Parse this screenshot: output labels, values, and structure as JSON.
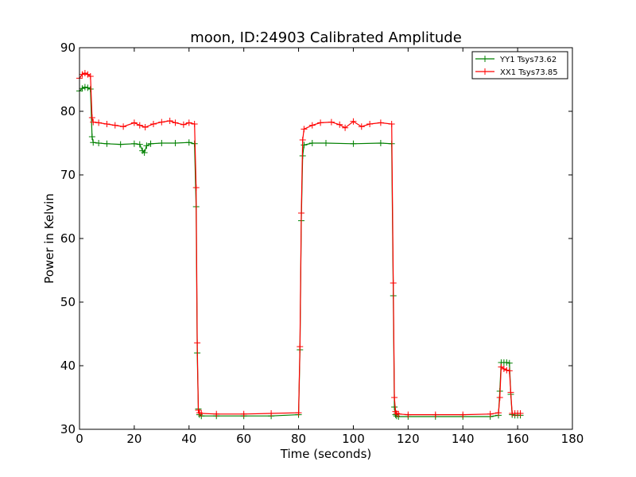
{
  "chart_data": {
    "type": "line",
    "title": "moon, ID:24903 Calibrated Amplitude",
    "xlabel": "Time (seconds)",
    "ylabel": "Power in Kelvin",
    "xlim": [
      0,
      180
    ],
    "ylim": [
      30,
      90
    ],
    "xticks": [
      0,
      20,
      40,
      60,
      80,
      100,
      120,
      140,
      160,
      180
    ],
    "yticks": [
      30,
      40,
      50,
      60,
      70,
      80,
      90
    ],
    "grid": false,
    "legend_position": "top-right",
    "series": [
      {
        "name": "YY1 Tsys73.62",
        "color": "#008000",
        "x": [
          0,
          1,
          2,
          3,
          4,
          4.6,
          5,
          7,
          10,
          15,
          20,
          22,
          23,
          23.7,
          24.5,
          26,
          30,
          35,
          40,
          42,
          42.6,
          43,
          43.4,
          43.8,
          44.5,
          50,
          60,
          70,
          80,
          80.5,
          81,
          81.5,
          82,
          85,
          90,
          100,
          110,
          114,
          114.6,
          115,
          115.4,
          115.8,
          116.5,
          120,
          130,
          140,
          150,
          153,
          153.5,
          154,
          155,
          156,
          157,
          157.5,
          158,
          159,
          160,
          161
        ],
        "y": [
          83.2,
          83.6,
          83.8,
          83.7,
          83.5,
          76.0,
          75.1,
          75.0,
          74.9,
          74.8,
          74.9,
          74.8,
          73.8,
          73.5,
          74.6,
          74.9,
          75.0,
          75.0,
          75.1,
          74.9,
          65.0,
          42.0,
          33.2,
          32.3,
          32.1,
          32.1,
          32.1,
          32.1,
          32.3,
          42.5,
          62.8,
          73.0,
          74.7,
          75.0,
          75.0,
          74.9,
          75.0,
          74.9,
          51.0,
          33.5,
          32.3,
          32.1,
          32.0,
          32.0,
          32.0,
          32.0,
          32.0,
          32.2,
          36.0,
          40.5,
          40.5,
          40.5,
          40.4,
          35.5,
          32.3,
          32.2,
          32.2,
          32.2
        ]
      },
      {
        "name": "XX1 Tsys73.85",
        "color": "#ff0000",
        "x": [
          0,
          1,
          2,
          3,
          4,
          4.6,
          5,
          7,
          10,
          13,
          16,
          20,
          22,
          24,
          27,
          30,
          33,
          35,
          38,
          40,
          42,
          42.6,
          43,
          43.4,
          43.8,
          44.5,
          50,
          60,
          70,
          80,
          80.5,
          81,
          81.5,
          82,
          85,
          88,
          92,
          95,
          97,
          100,
          103,
          106,
          110,
          114,
          114.6,
          115,
          115.4,
          115.8,
          116.5,
          120,
          130,
          140,
          150,
          153,
          153.5,
          154,
          155,
          156,
          157,
          157.5,
          158,
          159,
          160,
          161
        ],
        "y": [
          85.2,
          85.8,
          86.0,
          85.8,
          85.5,
          79.0,
          78.3,
          78.2,
          78.0,
          77.8,
          77.6,
          78.2,
          77.8,
          77.5,
          78.0,
          78.3,
          78.5,
          78.2,
          77.9,
          78.2,
          78.0,
          68.0,
          43.6,
          33.0,
          32.6,
          32.5,
          32.4,
          32.4,
          32.5,
          32.6,
          43.0,
          64.0,
          75.5,
          77.2,
          77.8,
          78.2,
          78.3,
          77.9,
          77.4,
          78.4,
          77.6,
          78.0,
          78.2,
          78.0,
          53.0,
          35.0,
          32.8,
          32.5,
          32.4,
          32.3,
          32.3,
          32.3,
          32.4,
          32.6,
          35.0,
          39.8,
          39.5,
          39.3,
          39.2,
          35.8,
          32.5,
          32.5,
          32.5,
          32.5
        ]
      }
    ]
  }
}
